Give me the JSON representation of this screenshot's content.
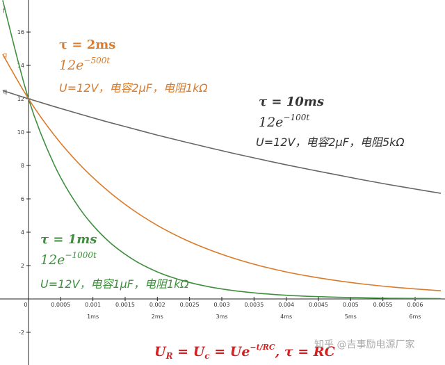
{
  "chart_data": {
    "type": "line",
    "x": [
      -0.0004,
      0,
      0.0004,
      0.0008,
      0.0012,
      0.0016,
      0.002,
      0.0024,
      0.0028,
      0.0032,
      0.0036,
      0.004,
      0.0044,
      0.0048,
      0.0052,
      0.0056,
      0.006,
      0.0064
    ],
    "series": [
      {
        "name": "f",
        "color": "#3f8f3f",
        "values": [
          17.9,
          12,
          8.04,
          5.39,
          3.61,
          2.42,
          1.62,
          1.09,
          0.73,
          0.49,
          0.33,
          0.22,
          0.15,
          0.1,
          0.07,
          0.04,
          0.03,
          0.02
        ]
      },
      {
        "name": "g",
        "color": "#d97b2b",
        "values": [
          14.66,
          12,
          9.82,
          8.04,
          6.59,
          5.39,
          4.41,
          3.61,
          2.96,
          2.42,
          1.98,
          1.62,
          1.33,
          1.09,
          0.89,
          0.73,
          0.6,
          0.49
        ]
      },
      {
        "name": "q",
        "color": "#666666",
        "values": [
          12.49,
          12,
          11.53,
          11.08,
          10.64,
          10.23,
          9.82,
          9.44,
          9.07,
          8.71,
          8.37,
          8.04,
          7.73,
          7.43,
          7.13,
          6.85,
          6.59,
          6.33
        ]
      }
    ],
    "xlim": [
      -0.000442,
      0.006464
    ],
    "ylim": [
      -3.96,
      17.92
    ],
    "xticks": [
      0,
      0.0005,
      0.001,
      0.0015,
      0.002,
      0.0025,
      0.003,
      0.0035,
      0.004,
      0.0045,
      0.005,
      0.0055,
      0.006
    ],
    "x2ticks": [
      {
        "value": 0.001,
        "label": "1ms"
      },
      {
        "value": 0.002,
        "label": "2ms"
      },
      {
        "value": 0.003,
        "label": "3ms"
      },
      {
        "value": 0.004,
        "label": "4ms"
      },
      {
        "value": 0.005,
        "label": "5ms"
      },
      {
        "value": 0.006,
        "label": "6ms"
      }
    ],
    "yticks": [
      -2,
      2,
      4,
      6,
      8,
      10,
      12,
      14,
      16
    ],
    "annotations": [
      {
        "tau": "τ = 2ms",
        "base": "12e",
        "exp": "−500t",
        "desc": "U=12V，电容2μF，电阻1kΩ"
      },
      {
        "tau": "τ = 10ms",
        "base": "12e",
        "exp": "−100t",
        "desc": "U=12V，电容2μF，电阻5kΩ"
      },
      {
        "tau": "τ = 1ms",
        "base": "12e",
        "exp": "−1000t",
        "desc": "U=12V，电容1μF，电阻1kΩ"
      }
    ],
    "formula": [
      "U",
      "R",
      " = U",
      "c",
      " = Ue",
      "−t/RC",
      ", τ = RC"
    ],
    "watermark": "知乎 @吉事励电源厂家"
  }
}
